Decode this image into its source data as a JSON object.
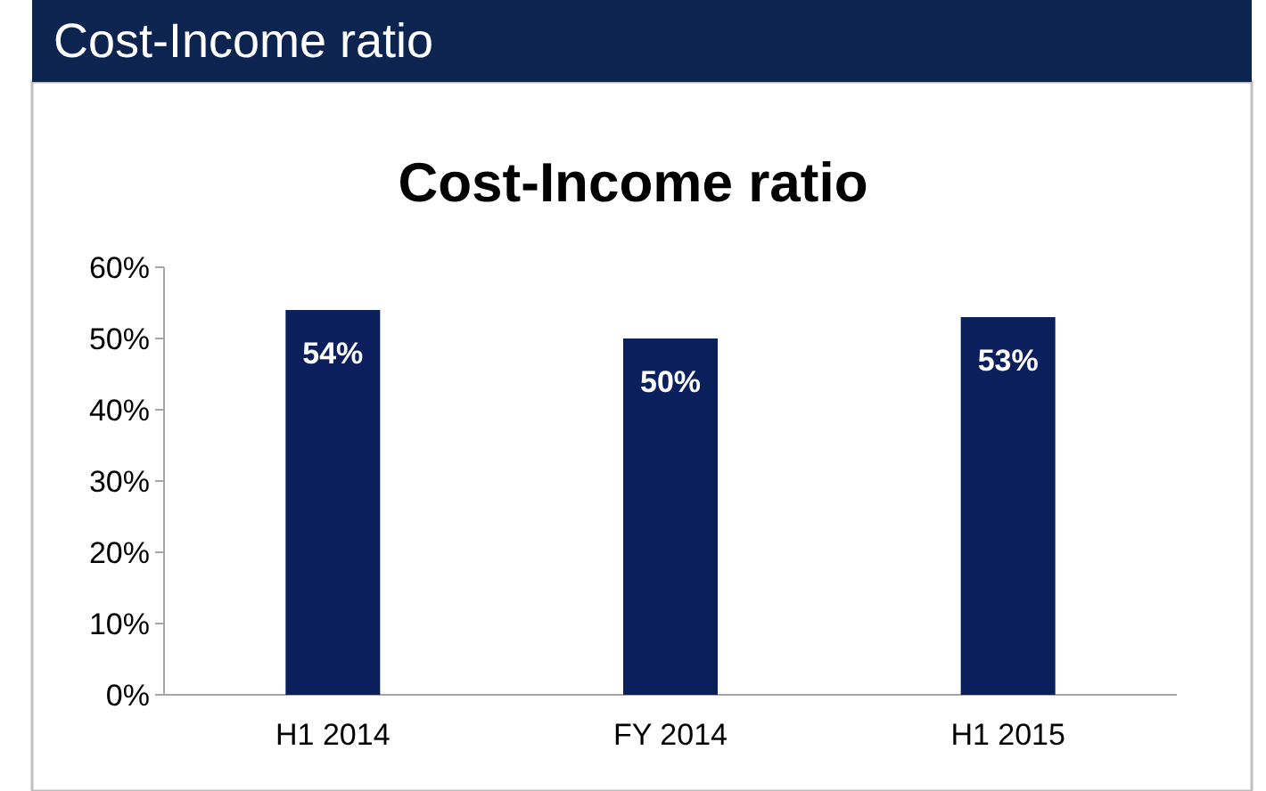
{
  "chart_data": {
    "type": "bar",
    "title": "Cost-Income ratio",
    "subtitle": "Cost-Income ratio",
    "categories": [
      "H1 2014",
      "FY 2014",
      "H1 2015"
    ],
    "values": [
      54,
      50,
      53
    ],
    "color": "#0b1f5c",
    "data_labels": true,
    "value_labels": [
      "54%",
      "50%",
      "53%"
    ],
    "ylim": [
      0,
      60
    ],
    "yticks": [
      {
        "value": 0,
        "label": "0%"
      },
      {
        "value": 10,
        "label": "10%"
      },
      {
        "value": 20,
        "label": "20%"
      },
      {
        "value": 30,
        "label": "30%"
      },
      {
        "value": 40,
        "label": "40%"
      },
      {
        "value": 50,
        "label": "50%"
      },
      {
        "value": 60,
        "label": "60%"
      }
    ],
    "grid": false
  }
}
